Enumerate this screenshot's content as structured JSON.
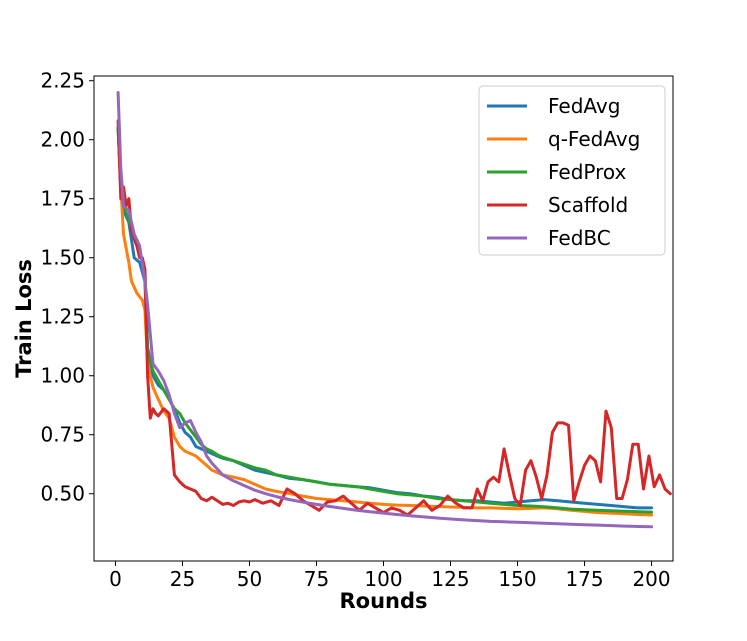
{
  "chart_data": {
    "type": "line",
    "xlabel": "Rounds",
    "ylabel": "Train Loss",
    "xlim": [
      -8,
      208
    ],
    "ylim": [
      0.215,
      2.27
    ],
    "xticks": [
      0,
      25,
      50,
      75,
      100,
      125,
      150,
      175,
      200
    ],
    "yticks": [
      0.5,
      0.75,
      1.0,
      1.25,
      1.5,
      1.75,
      2.0,
      2.25
    ],
    "ytick_labels": [
      "0.50",
      "0.75",
      "1.00",
      "1.25",
      "1.50",
      "1.75",
      "2.00",
      "2.25"
    ],
    "grid": false,
    "legend_position": "top-right",
    "series": [
      {
        "name": "FedAvg",
        "color": "#1f77b4",
        "points": [
          [
            1,
            2.05
          ],
          [
            2,
            1.8
          ],
          [
            3,
            1.7
          ],
          [
            5,
            1.65
          ],
          [
            7,
            1.5
          ],
          [
            9,
            1.48
          ],
          [
            11,
            1.4
          ],
          [
            12,
            1.12
          ],
          [
            14,
            1.0
          ],
          [
            16,
            0.96
          ],
          [
            18,
            0.94
          ],
          [
            20,
            0.9
          ],
          [
            22,
            0.86
          ],
          [
            24,
            0.8
          ],
          [
            26,
            0.76
          ],
          [
            28,
            0.74
          ],
          [
            30,
            0.7
          ],
          [
            32,
            0.69
          ],
          [
            34,
            0.68
          ],
          [
            36,
            0.67
          ],
          [
            38,
            0.66
          ],
          [
            40,
            0.65
          ],
          [
            44,
            0.64
          ],
          [
            48,
            0.62
          ],
          [
            52,
            0.6
          ],
          [
            56,
            0.59
          ],
          [
            60,
            0.58
          ],
          [
            65,
            0.565
          ],
          [
            70,
            0.56
          ],
          [
            75,
            0.55
          ],
          [
            80,
            0.54
          ],
          [
            85,
            0.535
          ],
          [
            90,
            0.53
          ],
          [
            95,
            0.525
          ],
          [
            100,
            0.515
          ],
          [
            105,
            0.505
          ],
          [
            110,
            0.5
          ],
          [
            115,
            0.49
          ],
          [
            120,
            0.485
          ],
          [
            125,
            0.475
          ],
          [
            130,
            0.47
          ],
          [
            135,
            0.47
          ],
          [
            140,
            0.465
          ],
          [
            145,
            0.46
          ],
          [
            150,
            0.465
          ],
          [
            155,
            0.47
          ],
          [
            160,
            0.475
          ],
          [
            165,
            0.47
          ],
          [
            170,
            0.465
          ],
          [
            175,
            0.46
          ],
          [
            180,
            0.455
          ],
          [
            185,
            0.45
          ],
          [
            190,
            0.445
          ],
          [
            195,
            0.44
          ],
          [
            200,
            0.44
          ]
        ]
      },
      {
        "name": "q-FedAvg",
        "color": "#ff7f0e",
        "points": [
          [
            1,
            2.05
          ],
          [
            2,
            1.8
          ],
          [
            3,
            1.6
          ],
          [
            5,
            1.48
          ],
          [
            6,
            1.4
          ],
          [
            8,
            1.35
          ],
          [
            10,
            1.32
          ],
          [
            11,
            1.28
          ],
          [
            12,
            1.05
          ],
          [
            14,
            0.95
          ],
          [
            16,
            0.9
          ],
          [
            18,
            0.85
          ],
          [
            20,
            0.82
          ],
          [
            22,
            0.74
          ],
          [
            24,
            0.7
          ],
          [
            26,
            0.68
          ],
          [
            28,
            0.67
          ],
          [
            30,
            0.66
          ],
          [
            32,
            0.64
          ],
          [
            34,
            0.62
          ],
          [
            36,
            0.6
          ],
          [
            38,
            0.59
          ],
          [
            40,
            0.58
          ],
          [
            44,
            0.57
          ],
          [
            48,
            0.56
          ],
          [
            52,
            0.54
          ],
          [
            56,
            0.52
          ],
          [
            60,
            0.51
          ],
          [
            65,
            0.5
          ],
          [
            70,
            0.49
          ],
          [
            75,
            0.48
          ],
          [
            80,
            0.475
          ],
          [
            85,
            0.47
          ],
          [
            90,
            0.465
          ],
          [
            95,
            0.46
          ],
          [
            100,
            0.455
          ],
          [
            105,
            0.452
          ],
          [
            110,
            0.45
          ],
          [
            115,
            0.448
          ],
          [
            120,
            0.446
          ],
          [
            125,
            0.444
          ],
          [
            130,
            0.442
          ],
          [
            135,
            0.44
          ],
          [
            140,
            0.44
          ],
          [
            145,
            0.438
          ],
          [
            150,
            0.436
          ],
          [
            155,
            0.438
          ],
          [
            160,
            0.44
          ],
          [
            165,
            0.436
          ],
          [
            170,
            0.43
          ],
          [
            175,
            0.425
          ],
          [
            180,
            0.42
          ],
          [
            185,
            0.418
          ],
          [
            190,
            0.415
          ],
          [
            195,
            0.412
          ],
          [
            200,
            0.41
          ]
        ]
      },
      {
        "name": "FedProx",
        "color": "#2ca02c",
        "points": [
          [
            1,
            2.05
          ],
          [
            2,
            1.8
          ],
          [
            3,
            1.72
          ],
          [
            5,
            1.66
          ],
          [
            7,
            1.58
          ],
          [
            9,
            1.52
          ],
          [
            11,
            1.45
          ],
          [
            12,
            1.1
          ],
          [
            14,
            1.02
          ],
          [
            16,
            0.98
          ],
          [
            18,
            0.94
          ],
          [
            20,
            0.9
          ],
          [
            22,
            0.86
          ],
          [
            24,
            0.84
          ],
          [
            26,
            0.8
          ],
          [
            28,
            0.77
          ],
          [
            30,
            0.74
          ],
          [
            32,
            0.71
          ],
          [
            34,
            0.69
          ],
          [
            36,
            0.68
          ],
          [
            38,
            0.665
          ],
          [
            40,
            0.655
          ],
          [
            44,
            0.64
          ],
          [
            48,
            0.625
          ],
          [
            52,
            0.61
          ],
          [
            56,
            0.6
          ],
          [
            60,
            0.58
          ],
          [
            65,
            0.57
          ],
          [
            70,
            0.56
          ],
          [
            75,
            0.55
          ],
          [
            80,
            0.54
          ],
          [
            85,
            0.535
          ],
          [
            90,
            0.53
          ],
          [
            95,
            0.52
          ],
          [
            100,
            0.51
          ],
          [
            105,
            0.5
          ],
          [
            110,
            0.495
          ],
          [
            115,
            0.49
          ],
          [
            120,
            0.48
          ],
          [
            125,
            0.475
          ],
          [
            130,
            0.47
          ],
          [
            135,
            0.465
          ],
          [
            140,
            0.46
          ],
          [
            145,
            0.455
          ],
          [
            150,
            0.45
          ],
          [
            155,
            0.448
          ],
          [
            160,
            0.445
          ],
          [
            165,
            0.44
          ],
          [
            170,
            0.435
          ],
          [
            175,
            0.432
          ],
          [
            180,
            0.43
          ],
          [
            185,
            0.428
          ],
          [
            190,
            0.426
          ],
          [
            195,
            0.424
          ],
          [
            200,
            0.422
          ]
        ]
      },
      {
        "name": "Scaffold",
        "color": "#d62728",
        "points": [
          [
            1,
            2.08
          ],
          [
            2,
            1.75
          ],
          [
            3,
            1.8
          ],
          [
            4,
            1.72
          ],
          [
            5,
            1.75
          ],
          [
            6,
            1.62
          ],
          [
            7,
            1.58
          ],
          [
            8,
            1.55
          ],
          [
            9,
            1.5
          ],
          [
            10,
            1.5
          ],
          [
            11,
            1.45
          ],
          [
            12,
            1.0
          ],
          [
            13,
            0.82
          ],
          [
            14,
            0.86
          ],
          [
            15,
            0.84
          ],
          [
            16,
            0.83
          ],
          [
            18,
            0.86
          ],
          [
            20,
            0.84
          ],
          [
            22,
            0.58
          ],
          [
            24,
            0.55
          ],
          [
            26,
            0.53
          ],
          [
            28,
            0.52
          ],
          [
            30,
            0.51
          ],
          [
            32,
            0.48
          ],
          [
            34,
            0.47
          ],
          [
            36,
            0.485
          ],
          [
            38,
            0.47
          ],
          [
            40,
            0.455
          ],
          [
            42,
            0.46
          ],
          [
            44,
            0.45
          ],
          [
            46,
            0.465
          ],
          [
            48,
            0.47
          ],
          [
            50,
            0.465
          ],
          [
            52,
            0.475
          ],
          [
            55,
            0.46
          ],
          [
            58,
            0.47
          ],
          [
            61,
            0.45
          ],
          [
            64,
            0.52
          ],
          [
            67,
            0.5
          ],
          [
            70,
            0.47
          ],
          [
            73,
            0.45
          ],
          [
            76,
            0.43
          ],
          [
            79,
            0.465
          ],
          [
            82,
            0.47
          ],
          [
            85,
            0.49
          ],
          [
            88,
            0.46
          ],
          [
            91,
            0.43
          ],
          [
            94,
            0.46
          ],
          [
            97,
            0.44
          ],
          [
            100,
            0.42
          ],
          [
            103,
            0.44
          ],
          [
            106,
            0.43
          ],
          [
            109,
            0.41
          ],
          [
            112,
            0.44
          ],
          [
            115,
            0.47
          ],
          [
            118,
            0.43
          ],
          [
            121,
            0.45
          ],
          [
            124,
            0.49
          ],
          [
            127,
            0.46
          ],
          [
            130,
            0.44
          ],
          [
            133,
            0.44
          ],
          [
            135,
            0.52
          ],
          [
            137,
            0.47
          ],
          [
            139,
            0.55
          ],
          [
            141,
            0.57
          ],
          [
            143,
            0.55
          ],
          [
            145,
            0.69
          ],
          [
            147,
            0.58
          ],
          [
            149,
            0.48
          ],
          [
            151,
            0.45
          ],
          [
            153,
            0.6
          ],
          [
            155,
            0.64
          ],
          [
            157,
            0.57
          ],
          [
            159,
            0.48
          ],
          [
            161,
            0.58
          ],
          [
            163,
            0.76
          ],
          [
            165,
            0.8
          ],
          [
            167,
            0.8
          ],
          [
            169,
            0.79
          ],
          [
            171,
            0.47
          ],
          [
            173,
            0.55
          ],
          [
            175,
            0.62
          ],
          [
            177,
            0.66
          ],
          [
            179,
            0.64
          ],
          [
            181,
            0.55
          ],
          [
            183,
            0.85
          ],
          [
            185,
            0.78
          ],
          [
            187,
            0.48
          ],
          [
            189,
            0.48
          ],
          [
            191,
            0.56
          ],
          [
            193,
            0.71
          ],
          [
            195,
            0.71
          ],
          [
            197,
            0.52
          ],
          [
            199,
            0.66
          ],
          [
            201,
            0.53
          ],
          [
            203,
            0.58
          ],
          [
            205,
            0.52
          ],
          [
            207,
            0.5
          ]
        ]
      },
      {
        "name": "FedBC",
        "color": "#9467bd",
        "points": [
          [
            1,
            2.2
          ],
          [
            2,
            1.88
          ],
          [
            3,
            1.72
          ],
          [
            5,
            1.7
          ],
          [
            7,
            1.6
          ],
          [
            9,
            1.55
          ],
          [
            11,
            1.4
          ],
          [
            12,
            1.3
          ],
          [
            14,
            1.05
          ],
          [
            16,
            1.02
          ],
          [
            18,
            0.98
          ],
          [
            20,
            0.92
          ],
          [
            22,
            0.84
          ],
          [
            24,
            0.78
          ],
          [
            26,
            0.8
          ],
          [
            28,
            0.81
          ],
          [
            30,
            0.76
          ],
          [
            32,
            0.72
          ],
          [
            34,
            0.66
          ],
          [
            36,
            0.63
          ],
          [
            38,
            0.605
          ],
          [
            40,
            0.58
          ],
          [
            44,
            0.555
          ],
          [
            48,
            0.535
          ],
          [
            52,
            0.515
          ],
          [
            56,
            0.5
          ],
          [
            60,
            0.488
          ],
          [
            65,
            0.475
          ],
          [
            70,
            0.464
          ],
          [
            75,
            0.455
          ],
          [
            80,
            0.446
          ],
          [
            85,
            0.438
          ],
          [
            90,
            0.43
          ],
          [
            95,
            0.424
          ],
          [
            100,
            0.418
          ],
          [
            105,
            0.412
          ],
          [
            110,
            0.407
          ],
          [
            115,
            0.402
          ],
          [
            120,
            0.397
          ],
          [
            125,
            0.393
          ],
          [
            130,
            0.389
          ],
          [
            135,
            0.386
          ],
          [
            140,
            0.383
          ],
          [
            145,
            0.381
          ],
          [
            150,
            0.379
          ],
          [
            155,
            0.377
          ],
          [
            160,
            0.375
          ],
          [
            165,
            0.373
          ],
          [
            170,
            0.371
          ],
          [
            175,
            0.369
          ],
          [
            180,
            0.367
          ],
          [
            185,
            0.365
          ],
          [
            190,
            0.363
          ],
          [
            195,
            0.361
          ],
          [
            200,
            0.36
          ]
        ]
      }
    ]
  }
}
